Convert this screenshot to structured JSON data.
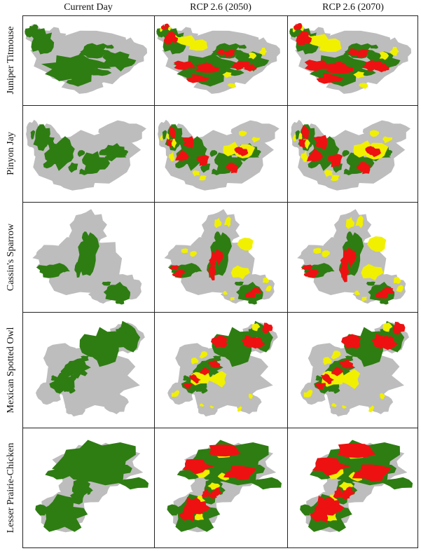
{
  "columns": [
    "Current Day",
    "RCP 2.6 (2050)",
    "RCP 2.6 (2070)"
  ],
  "rows": [
    "Juniper Titmouse",
    "Pinyon Jay",
    "Cassin's Sparrow",
    "Mexican Spotted Owl",
    "Lesser Prairie-Chicken"
  ],
  "colors": {
    "background_range": "#bdbdbd",
    "suitable": "#2e7d12",
    "gain": "#f0f000",
    "loss": "#ee1111"
  }
}
